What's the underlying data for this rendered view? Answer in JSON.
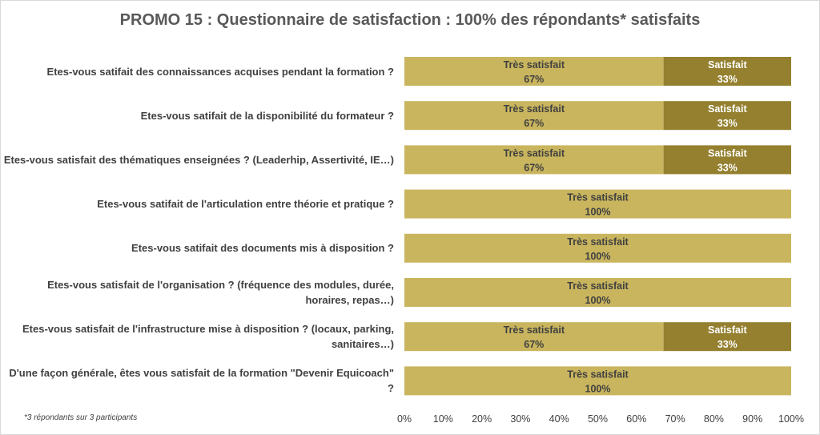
{
  "chart_data": {
    "type": "bar",
    "orientation": "horizontal",
    "stacked": true,
    "title": "PROMO 15 : Questionnaire de satisfaction : 100% des répondants* satisfaits",
    "categories": [
      "Etes-vous satifait des connaissances acquises pendant la formation ?",
      "Etes-vous satifait de la disponibilité du formateur ?",
      "Etes-vous satisfait des thématiques enseignées ? (Leaderhip, Assertivité, IE…)",
      "Etes-vous satifait de l'articulation entre théorie et pratique ?",
      "Etes-vous satifait des documents mis à disposition ?",
      "Etes-vous satisfait de l'organisation ? (fréquence des modules, durée, horaires, repas…)",
      "Etes-vous satisfait de l'infrastructure mise à disposition ? (locaux, parking, sanitaires…)",
      "D'une façon générale, êtes vous satisfait de la formation \"Devenir Equicoach\" ?"
    ],
    "series": [
      {
        "name": "Très satisfait",
        "color": "#c9b55e",
        "label_color": "#404040",
        "values": [
          67,
          67,
          67,
          100,
          100,
          100,
          67,
          100
        ]
      },
      {
        "name": "Satisfait",
        "color": "#94802f",
        "label_color": "#ffffff",
        "values": [
          33,
          33,
          33,
          0,
          0,
          0,
          33,
          0
        ]
      }
    ],
    "xlim": [
      0,
      100
    ],
    "x_ticks": [
      "0%",
      "10%",
      "20%",
      "30%",
      "40%",
      "50%",
      "60%",
      "70%",
      "80%",
      "90%",
      "100%"
    ],
    "grid": false,
    "legend": "none",
    "data_labels": "category name and percent inside segment"
  },
  "footnote": "*3 répondants sur 3 participants"
}
